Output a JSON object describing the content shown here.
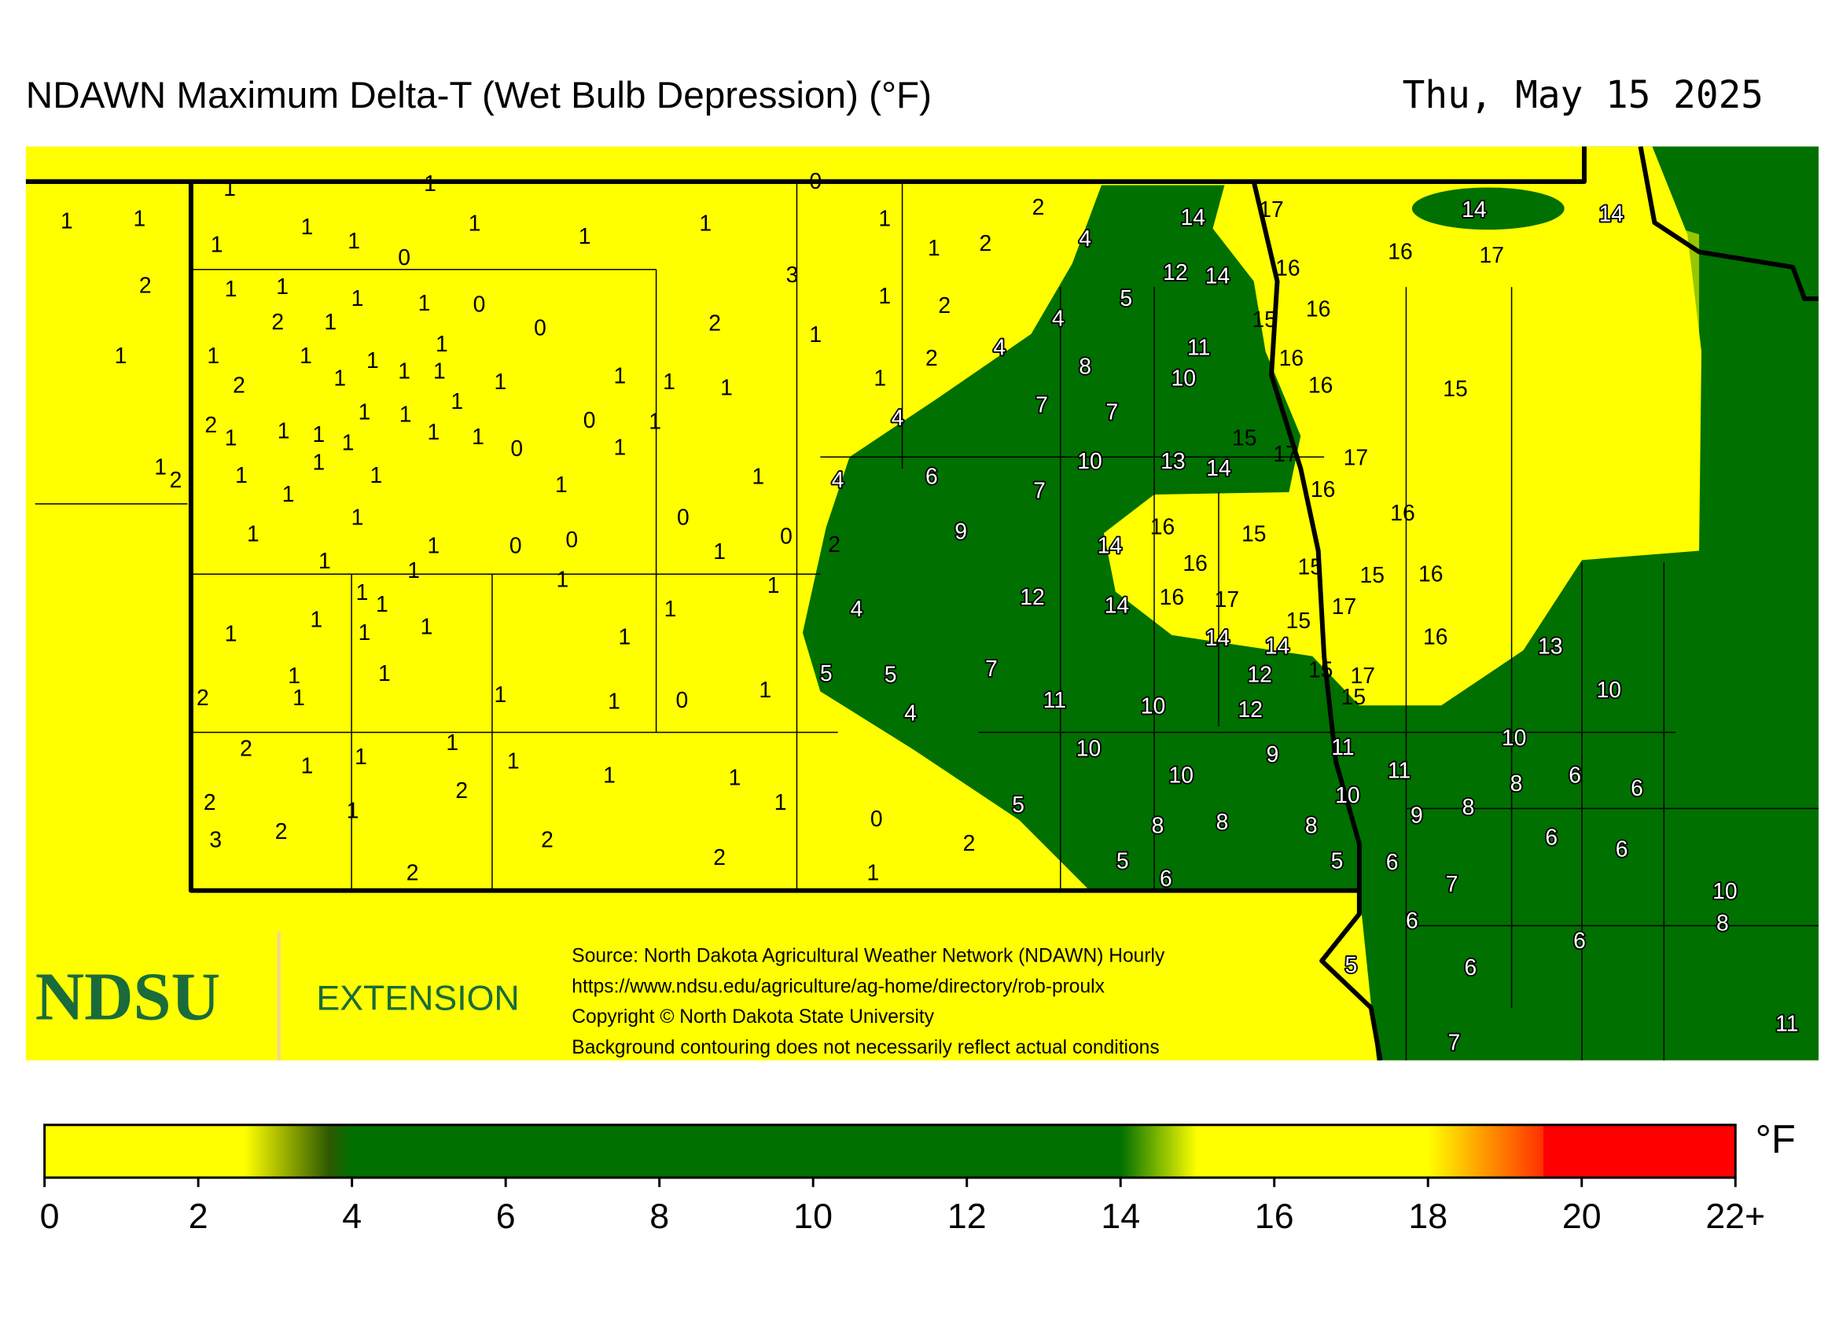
{
  "title": "NDAWN Maximum Delta-T (Wet Bulb Depression) (°F)",
  "date": "Thu, May 15 2025",
  "logo": {
    "name": "NDSU",
    "unit": "EXTENSION"
  },
  "source": [
    "Source: North Dakota Agricultural Weather Network (NDAWN) Hourly",
    "https://www.ndsu.edu/agriculture/ag-home/directory/rob-proulx",
    "Copyright © North Dakota State University",
    "Background contouring does not necessarily reflect actual conditions"
  ],
  "stations": [
    1,
    1,
    2,
    1,
    1,
    1,
    1,
    1,
    0,
    1,
    1,
    1,
    1,
    0,
    1,
    1,
    2,
    2,
    4,
    14,
    17,
    14,
    14,
    16,
    17,
    16,
    12,
    14,
    3,
    1,
    1,
    2,
    1,
    1,
    1,
    0,
    0,
    2,
    1,
    1,
    2,
    5,
    4,
    15,
    16,
    1,
    1,
    1,
    1,
    2,
    1,
    1,
    1,
    1,
    1,
    1,
    1,
    1,
    2,
    4,
    8,
    11,
    16,
    10,
    16,
    15,
    2,
    1,
    1,
    1,
    1,
    1,
    1,
    1,
    1,
    1,
    0,
    0,
    1,
    1,
    4,
    7,
    7,
    15,
    17,
    17,
    1,
    2,
    1,
    1,
    1,
    1,
    1,
    1,
    4,
    6,
    7,
    10,
    13,
    14,
    16,
    16,
    1,
    1,
    1,
    0,
    0,
    0,
    1,
    0,
    2,
    9,
    14,
    16,
    15,
    1,
    1,
    1,
    1,
    16,
    15,
    15,
    16,
    1,
    1,
    1,
    1,
    4,
    12,
    14,
    16,
    17,
    15,
    17,
    1,
    1,
    1,
    1,
    14,
    14,
    16,
    13,
    1,
    1,
    1,
    2,
    1,
    1,
    0,
    1,
    5,
    5,
    7,
    12,
    15,
    17,
    15,
    4,
    11,
    10,
    12,
    10,
    2,
    1,
    1,
    1,
    1,
    2,
    1,
    1,
    1,
    10,
    10,
    9,
    11,
    11,
    10,
    8,
    6,
    6,
    2,
    1,
    0,
    5,
    10,
    9,
    8,
    3,
    2,
    2,
    2,
    2,
    8,
    8,
    8,
    6,
    6,
    2,
    1,
    5,
    6,
    5,
    6,
    7,
    10,
    8,
    6,
    6,
    5,
    6,
    11,
    7
  ],
  "colorbar": {
    "unit": "°F",
    "lim": [
      0,
      22
    ],
    "ticks": [
      0,
      2,
      4,
      6,
      8,
      10,
      12,
      14,
      16,
      18,
      20,
      {
        "value": 22,
        "label": "22+"
      }
    ],
    "colorscale": [
      [
        0,
        "#ffff00"
      ],
      [
        2.6,
        "#ffff00"
      ],
      [
        3.7,
        "#2e5a00"
      ],
      [
        4,
        "#007000"
      ],
      [
        14,
        "#007000"
      ],
      [
        15,
        "#ffff00"
      ],
      [
        18,
        "#ffff00"
      ],
      [
        19.5,
        "#ff3000"
      ],
      [
        19.5,
        "#ff0000"
      ],
      [
        22,
        "#ff0000"
      ]
    ]
  }
}
